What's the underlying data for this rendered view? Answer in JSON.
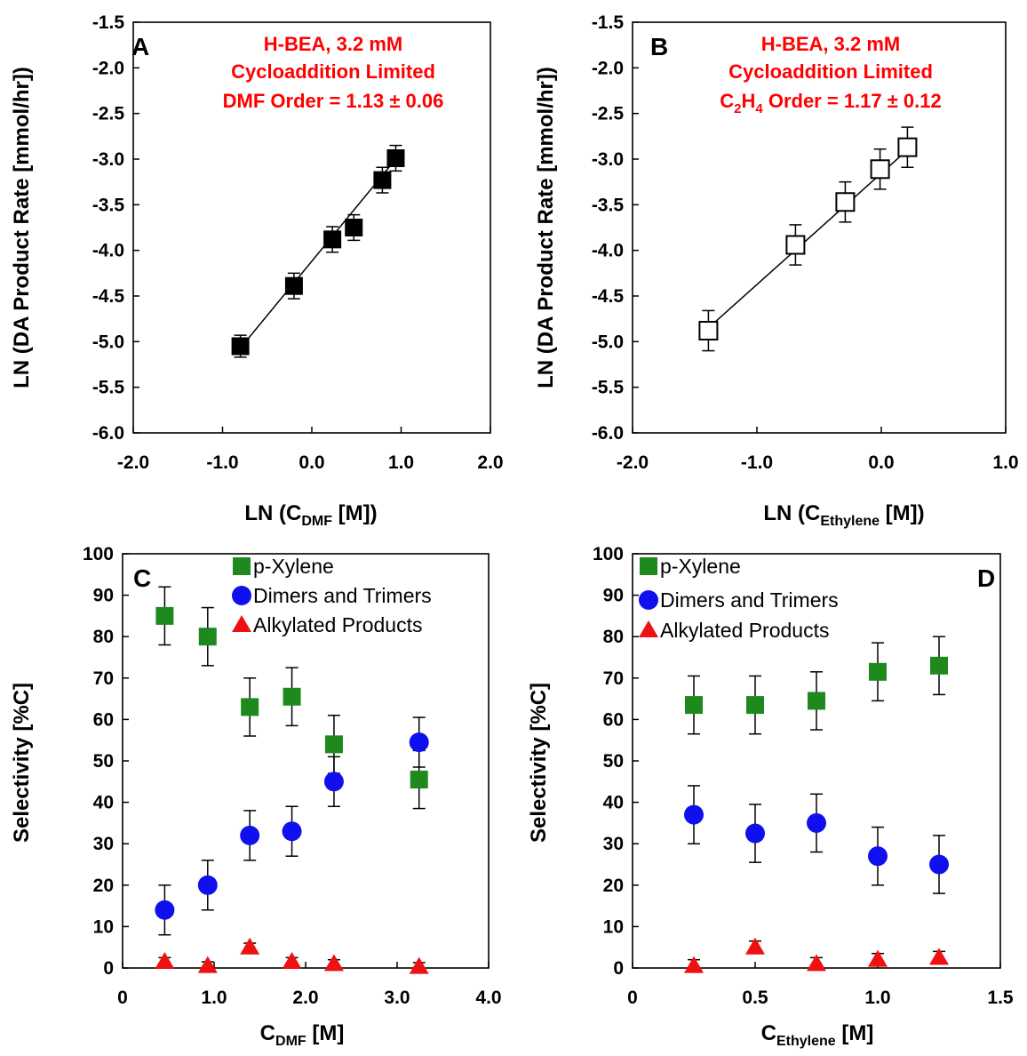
{
  "chart_data": [
    {
      "panel": "A",
      "type": "scatter",
      "xlabel": "LN (C",
      "xlabel_sub": "DMF",
      "xlabel_tail": " [M])",
      "ylabel": "LN (DA Product Rate [mmol/hr])",
      "xlim": [
        -2.0,
        2.0
      ],
      "ylim": [
        -6.0,
        -1.5
      ],
      "xticks": [
        "-2.0",
        "-1.0",
        "0.0",
        "1.0",
        "2.0"
      ],
      "yticks": [
        "-1.5",
        "-2.0",
        "-2.5",
        "-3.0",
        "-3.5",
        "-4.0",
        "-4.5",
        "-5.0",
        "-5.5",
        "-6.0"
      ],
      "annotations": [
        "H-BEA, 3.2 mM",
        "Cycloaddition Limited",
        "DMF Order = 1.13 ± 0.06"
      ],
      "series": [
        {
          "marker": "square-filled",
          "color": "#000000",
          "x": [
            -0.8,
            -0.2,
            0.23,
            0.47,
            0.79,
            0.94
          ],
          "y": [
            -5.05,
            -4.39,
            -3.88,
            -3.75,
            -3.23,
            -2.99
          ],
          "err": [
            0.12,
            0.14,
            0.14,
            0.14,
            0.14,
            0.14
          ]
        }
      ],
      "fit_line": {
        "x": [
          -0.8,
          0.94
        ],
        "y": [
          -5.07,
          -3.0
        ]
      }
    },
    {
      "panel": "B",
      "type": "scatter",
      "xlabel": "LN (C",
      "xlabel_sub": "Ethylene",
      "xlabel_tail": " [M])",
      "ylabel": "LN (DA Product Rate [mmol/hr])",
      "xlim": [
        -2.0,
        1.0
      ],
      "ylim": [
        -6.0,
        -1.5
      ],
      "xticks": [
        "-2.0",
        "-1.0",
        "0.0",
        "1.0"
      ],
      "yticks": [
        "-1.5",
        "-2.0",
        "-2.5",
        "-3.0",
        "-3.5",
        "-4.0",
        "-4.5",
        "-5.0",
        "-5.5",
        "-6.0"
      ],
      "annotations": [
        "H-BEA, 3.2 mM",
        "Cycloaddition Limited",
        "C",
        "2",
        "H",
        "4",
        " Order = 1.17 ± 0.12"
      ],
      "series": [
        {
          "marker": "square-open",
          "color": "#000000",
          "x": [
            -1.39,
            -0.69,
            -0.29,
            -0.01,
            0.21
          ],
          "y": [
            -4.88,
            -3.94,
            -3.47,
            -3.11,
            -2.87
          ],
          "err": [
            0.22,
            0.22,
            0.22,
            0.22,
            0.22
          ]
        }
      ],
      "fit_line": {
        "x": [
          -1.39,
          0.21
        ],
        "y": [
          -4.85,
          -2.9
        ]
      }
    },
    {
      "panel": "C",
      "type": "scatter",
      "xlabel": "C",
      "xlabel_sub": "DMF",
      "xlabel_tail": " [M]",
      "ylabel": "Selectivity [%C]",
      "xlim": [
        0,
        4.0
      ],
      "ylim": [
        0,
        100
      ],
      "xticks": [
        "0",
        "1.0",
        "2.0",
        "3.0",
        "4.0"
      ],
      "yticks": [
        "0",
        "10",
        "20",
        "30",
        "40",
        "50",
        "60",
        "70",
        "80",
        "90",
        "100"
      ],
      "x": [
        0.46,
        0.93,
        1.39,
        1.85,
        2.31,
        3.24
      ],
      "series": [
        {
          "name": "p-Xylene",
          "marker": "square",
          "color": "#1e8a1e",
          "values": [
            85,
            80,
            63,
            65.5,
            54,
            45.5
          ],
          "err": [
            7,
            7,
            7,
            7,
            7,
            7
          ]
        },
        {
          "name": "Dimers and Trimers",
          "marker": "circle",
          "color": "#1010ee",
          "values": [
            14,
            20,
            32,
            33,
            45,
            54.5
          ],
          "err": [
            6,
            6,
            6,
            6,
            6,
            6
          ]
        },
        {
          "name": "Alkylated Products",
          "marker": "triangle",
          "color": "#ee1111",
          "values": [
            1.5,
            0.5,
            5,
            1.5,
            1,
            0.3
          ],
          "err": [
            1,
            1,
            1,
            1,
            1,
            1
          ]
        }
      ]
    },
    {
      "panel": "D",
      "type": "scatter",
      "xlabel": "C",
      "xlabel_sub": "Ethylene",
      "xlabel_tail": " [M]",
      "ylabel": "Selectivity [%C]",
      "xlim": [
        0,
        1.5
      ],
      "ylim": [
        0,
        100
      ],
      "xticks": [
        "0",
        "0.5",
        "1.0",
        "1.5"
      ],
      "yticks": [
        "0",
        "10",
        "20",
        "30",
        "40",
        "50",
        "60",
        "70",
        "80",
        "90",
        "100"
      ],
      "x": [
        0.25,
        0.5,
        0.75,
        1.0,
        1.25
      ],
      "series": [
        {
          "name": "p-Xylene",
          "marker": "square",
          "color": "#1e8a1e",
          "values": [
            63.5,
            63.5,
            64.5,
            71.5,
            73
          ],
          "err": [
            7,
            7,
            7,
            7,
            7
          ]
        },
        {
          "name": "Dimers and Trimers",
          "marker": "circle",
          "color": "#1010ee",
          "values": [
            37,
            32.5,
            35,
            27,
            25
          ],
          "err": [
            7,
            7,
            7,
            7,
            7
          ]
        },
        {
          "name": "Alkylated Products",
          "marker": "triangle",
          "color": "#ee1111",
          "values": [
            0.5,
            5,
            1,
            2,
            2.5
          ],
          "err": [
            1.5,
            1.5,
            1.5,
            1.5,
            1.5
          ]
        }
      ]
    }
  ]
}
